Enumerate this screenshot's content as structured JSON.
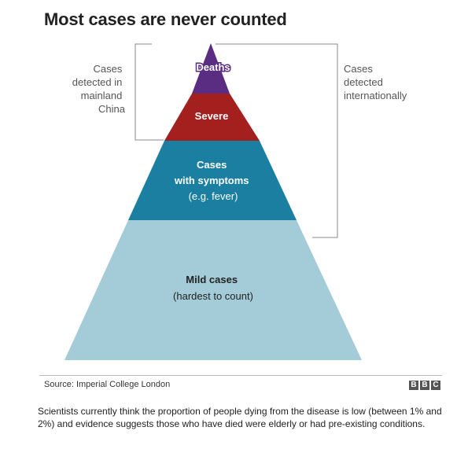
{
  "title": "Most cases are never counted",
  "pyramid": {
    "levels": [
      {
        "label": "Deaths",
        "color": "#5a2d82"
      },
      {
        "label": "Severe",
        "color": "#a3201e"
      },
      {
        "label": "Cases",
        "label2": "with symptoms",
        "sub": "(e.g. fever)",
        "color": "#1a7fa0"
      },
      {
        "label": "Mild cases",
        "sub": "(hardest to count)",
        "color": "#a3ccd8"
      }
    ]
  },
  "annotations": {
    "left": [
      "Cases",
      "detected in",
      "mainland",
      "China"
    ],
    "right": [
      "Cases",
      "detected",
      "internationally"
    ]
  },
  "source": "Source: Imperial College London",
  "logo": [
    "B",
    "B",
    "C"
  ],
  "caption": "Scientists currently think the proportion of people dying from the disease is low (between 1% and 2%) and evidence suggests those who have died were elderly or had pre-existing conditions."
}
